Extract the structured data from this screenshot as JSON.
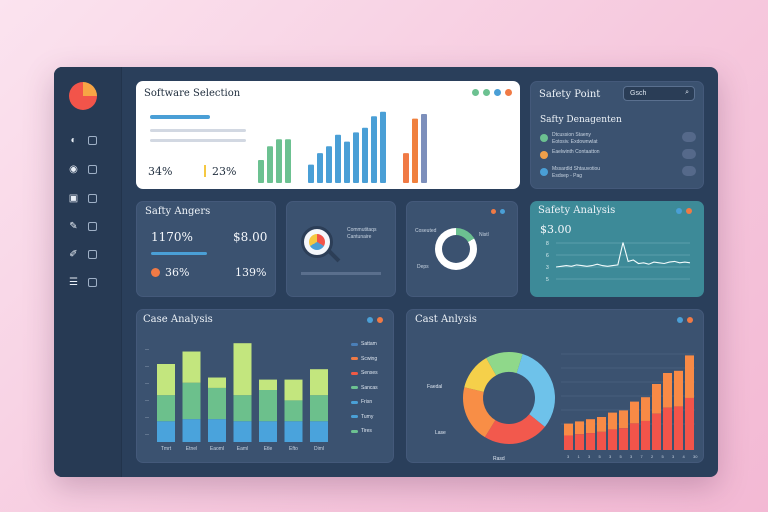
{
  "sidebar": {
    "items": [
      {
        "icon": "pie-icon"
      },
      {
        "icon": "clock-icon"
      },
      {
        "icon": "chart-icon"
      },
      {
        "icon": "pen-icon"
      },
      {
        "icon": "wrench-icon"
      }
    ]
  },
  "software": {
    "title": "Software Selection",
    "stat1": "34%",
    "stat2": "23%",
    "chart_data": {
      "type": "bar",
      "groups": [
        {
          "values": [
            10,
            16,
            19,
            19
          ],
          "color": "#6cc191"
        },
        {
          "values": [
            8,
            13,
            16,
            21,
            18,
            22,
            24,
            29,
            31
          ],
          "color": "#4a9fd6"
        },
        {
          "values": [
            13,
            28,
            30
          ],
          "colors": [
            "#f07a45",
            "#f0803e",
            "#7d8fbb"
          ]
        }
      ]
    }
  },
  "safety_point": {
    "title": "Safety Point",
    "search_label": "Gsch",
    "sub_title": "Safty Denagenten",
    "rows": [
      {
        "text": "Dtcussion Staeny",
        "text2": "Eotosiv. Exdownwlat",
        "color": "#6cc191"
      },
      {
        "text": "Eaelwinth Contaatton",
        "text2": "",
        "color": "#f0a04a"
      },
      {
        "text": "Mssardld Shtauvotiou",
        "text2": "Esdsep - Pag",
        "color": "#4a9fd6"
      }
    ]
  },
  "safety_angers": {
    "title": "Safty Angers",
    "val1": "1170%",
    "val2": "$8.00",
    "val3": "36%",
    "val4": "139%"
  },
  "mid_card": {
    "label1": "Commutitaqs",
    "label2": "Cantunaire"
  },
  "donut_card": {
    "label1": "Coseuted",
    "label2": "Nistl",
    "label3": "Deps"
  },
  "safety_analysis": {
    "title": "Safety Analysis",
    "value": "$3.00",
    "ticks": [
      "8",
      "6",
      "3",
      "5"
    ],
    "chart_data": {
      "type": "line",
      "values": [
        20,
        21,
        22,
        21,
        23,
        22,
        21,
        22,
        24,
        22,
        21,
        22,
        23,
        55,
        28,
        30,
        25,
        26,
        24,
        27,
        26,
        25,
        27,
        28,
        26,
        27,
        26
      ]
    }
  },
  "case_analysis": {
    "title": "Case Analysis",
    "categories": [
      "Tmrt",
      "Etnel",
      "Eaoml",
      "Eaml",
      "Etle",
      "Efto",
      "Diml"
    ],
    "legend": [
      {
        "label": "Sattam",
        "color": "#4a7fb8"
      },
      {
        "label": "Scwing",
        "color": "#f07a45"
      },
      {
        "label": "Senses",
        "color": "#f05a45"
      },
      {
        "label": "Sancas",
        "color": "#6cc191"
      },
      {
        "label": "Frisn",
        "color": "#4aa0d6"
      },
      {
        "label": "Tumy",
        "color": "#4aa0d6"
      },
      {
        "label": "Tires",
        "color": "#6cc191"
      }
    ],
    "chart_data": {
      "type": "bar",
      "series": [
        {
          "name": "blue",
          "color": "#4aa3dc",
          "values": [
            20,
            22,
            22,
            20,
            20,
            20,
            20
          ]
        },
        {
          "name": "green",
          "color": "#6cc08c",
          "values": [
            25,
            35,
            30,
            25,
            30,
            20,
            25
          ]
        },
        {
          "name": "lime",
          "color": "#c3e67e",
          "values": [
            30,
            30,
            10,
            50,
            10,
            20,
            25
          ]
        }
      ],
      "ylim": [
        0,
        100
      ]
    }
  },
  "cost_analysis": {
    "title": "Cast Anlysis",
    "pie_labels": [
      "Faedal",
      "Lase",
      "Rasd"
    ],
    "x_ticks": [
      "3",
      "1",
      "3",
      "5",
      "3",
      "5",
      "3",
      "7",
      "2",
      "5",
      "3",
      "4",
      "30"
    ],
    "chart_data": {
      "type": "pie",
      "slices": [
        {
          "value": 31,
          "color": "#6ec2ea"
        },
        {
          "value": 23,
          "color": "#f2594d"
        },
        {
          "value": 20,
          "color": "#f88e46"
        },
        {
          "value": 13,
          "color": "#f5d04a"
        },
        {
          "value": 13,
          "color": "#8fd88a"
        }
      ],
      "bars": [
        12,
        13,
        14,
        15,
        17,
        18,
        22,
        24,
        30,
        35,
        36,
        43
      ],
      "bar_colors_top": "#f88a46",
      "bar_colors_bottom": "#f2544a"
    }
  }
}
